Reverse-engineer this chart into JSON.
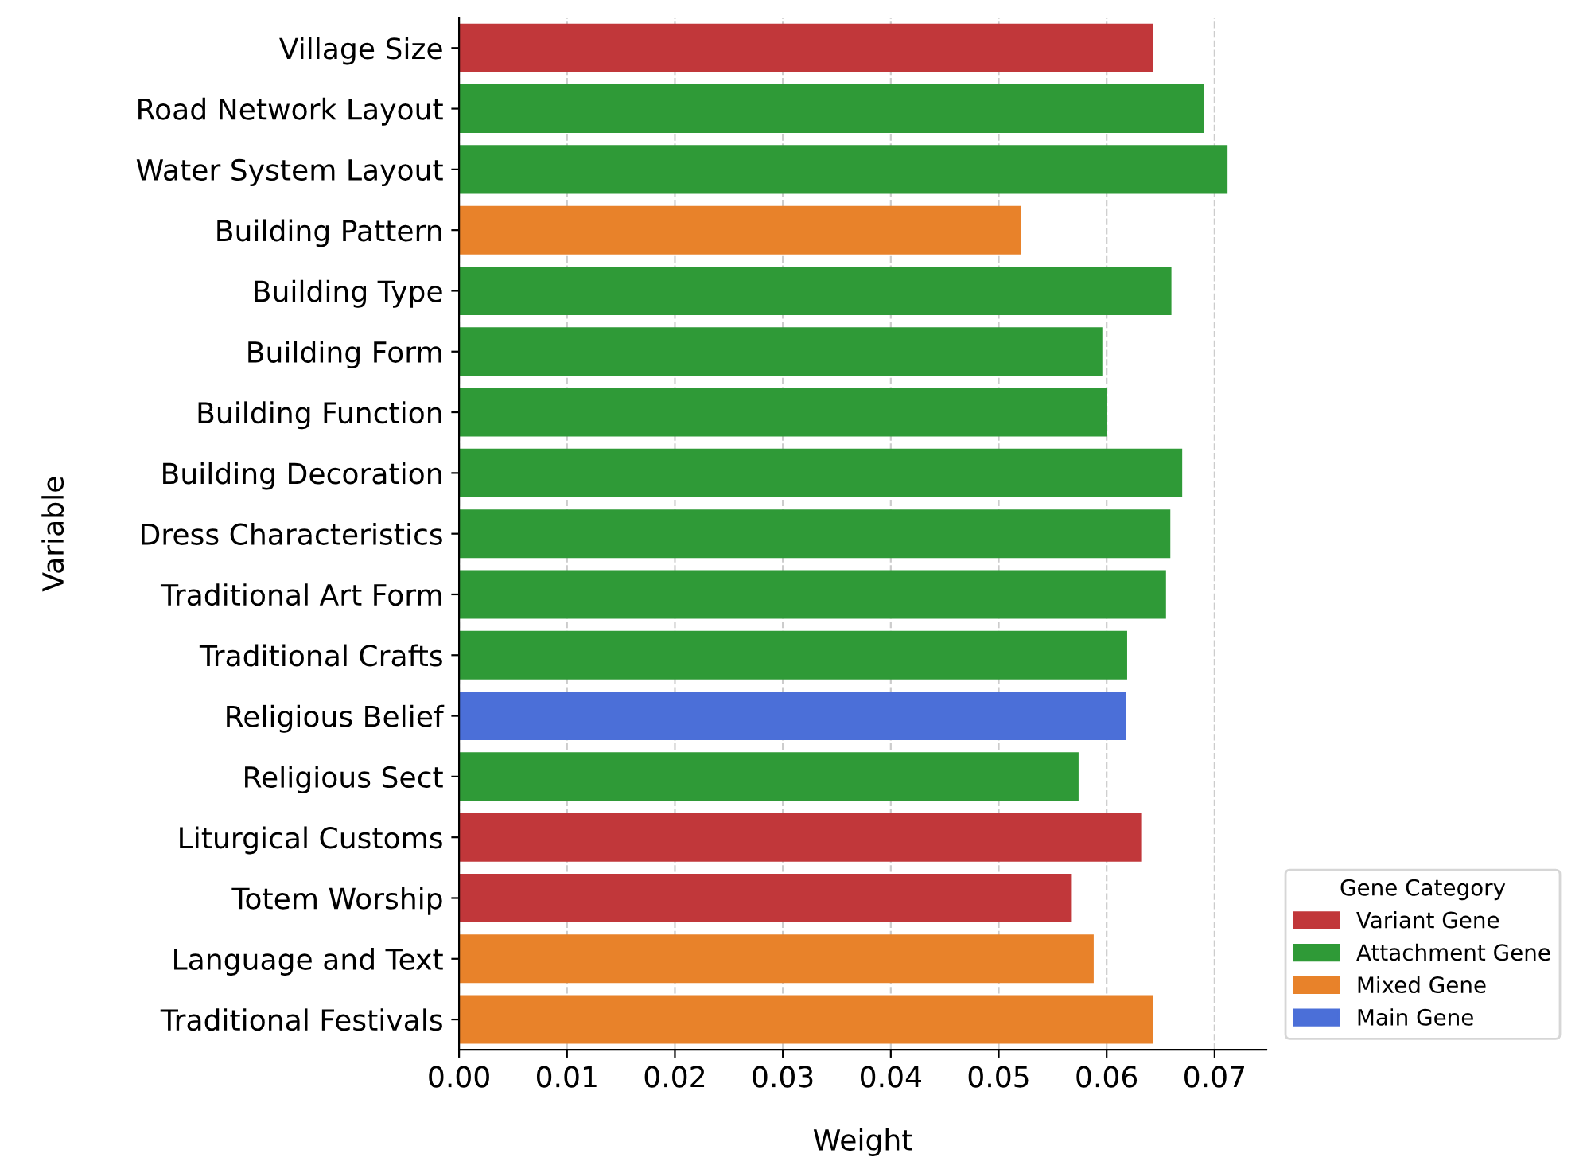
{
  "chart_data": {
    "type": "bar",
    "orientation": "horizontal",
    "xlabel": "Weight",
    "ylabel": "Variable",
    "legend_title": "Gene Category",
    "legend": "right",
    "categories": [
      "Village Size",
      "Road Network Layout",
      "Water System Layout",
      "Building Pattern",
      "Building Type",
      "Building Form",
      "Building Function",
      "Building Decoration",
      "Dress Characteristics",
      "Traditional Art Form",
      "Traditional Crafts",
      "Religious Belief",
      "Religious Sect",
      "Liturgical Customs",
      "Totem Worship",
      "Language and Text",
      "Traditional Festivals"
    ],
    "series": [
      {
        "name": "Variant Gene",
        "color": "#c1373a",
        "values": [
          0.0643,
          null,
          null,
          null,
          null,
          null,
          null,
          null,
          null,
          null,
          null,
          null,
          null,
          0.0632,
          0.0567,
          null,
          null
        ]
      },
      {
        "name": "Attachment Gene",
        "color": "#2f9a37",
        "values": [
          null,
          0.069,
          0.0712,
          null,
          0.066,
          0.0596,
          0.06,
          0.067,
          0.0659,
          0.0655,
          0.0619,
          null,
          0.0574,
          null,
          null,
          null,
          null
        ]
      },
      {
        "name": "Mixed Gene",
        "color": "#e8822a",
        "values": [
          null,
          null,
          null,
          0.0521,
          null,
          null,
          null,
          null,
          null,
          null,
          null,
          null,
          null,
          null,
          null,
          0.0588,
          0.0643
        ]
      },
      {
        "name": "Main Gene",
        "color": "#4b6fd8",
        "values": [
          null,
          null,
          null,
          null,
          null,
          null,
          null,
          null,
          null,
          null,
          null,
          0.0618,
          null,
          null,
          null,
          null,
          null
        ]
      }
    ],
    "xlim": [
      0,
      0.0748
    ],
    "xticks": [
      {
        "value": 0,
        "label": "0.00"
      },
      {
        "value": 0.01,
        "label": "0.01"
      },
      {
        "value": 0.02,
        "label": "0.02"
      },
      {
        "value": 0.03,
        "label": "0.03"
      },
      {
        "value": 0.04,
        "label": "0.04"
      },
      {
        "value": 0.05,
        "label": "0.05"
      },
      {
        "value": 0.06,
        "label": "0.06"
      },
      {
        "value": 0.07,
        "label": "0.07"
      }
    ],
    "grid": "x",
    "line_style": "dashed"
  }
}
